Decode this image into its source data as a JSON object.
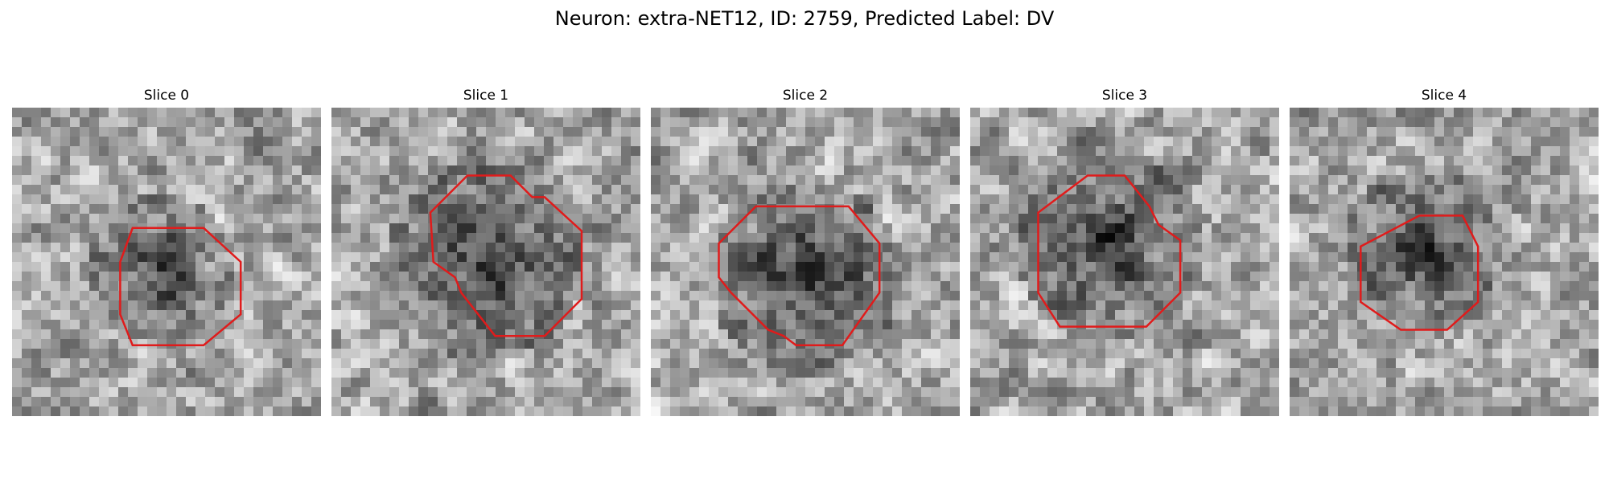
{
  "figure": {
    "title": "Neuron: extra-NET12, ID: 2759, Predicted Label: DV"
  },
  "panels": [
    {
      "title": "Slice 0",
      "seed": 11,
      "dark_center": [
        0.48,
        0.52
      ],
      "dark_radius": 0.18,
      "outline": "octagon"
    },
    {
      "title": "Slice 1",
      "seed": 23,
      "dark_center": [
        0.5,
        0.5
      ],
      "dark_radius": 0.26,
      "outline": "notched"
    },
    {
      "title": "Slice 2",
      "seed": 37,
      "dark_center": [
        0.5,
        0.55
      ],
      "dark_radius": 0.25,
      "outline": "wide"
    },
    {
      "title": "Slice 3",
      "seed": 41,
      "dark_center": [
        0.45,
        0.45
      ],
      "dark_radius": 0.24,
      "outline": "tall"
    },
    {
      "title": "Slice 4",
      "seed": 53,
      "dark_center": [
        0.43,
        0.45
      ],
      "dark_radius": 0.19,
      "outline": "small"
    }
  ],
  "colors": {
    "outline": "#e01b1b",
    "colormap": "gray"
  }
}
